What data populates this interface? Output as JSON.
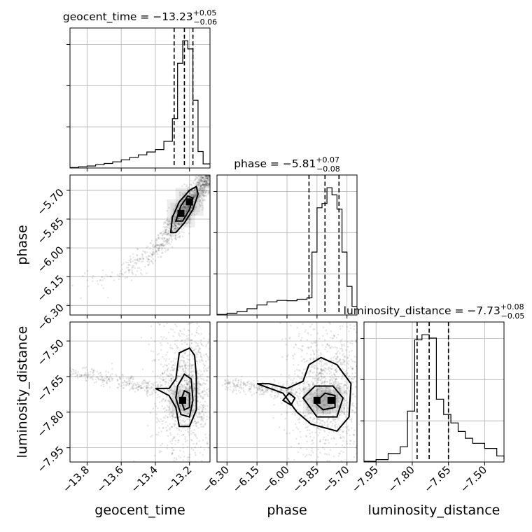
{
  "chart_data": {
    "type": "scatter",
    "parameters": [
      "geocent_time",
      "phase",
      "luminosity_distance"
    ],
    "grid": true,
    "diagonal": [
      {
        "param": "geocent_time",
        "title": {
          "prefix": "geocent_time = ",
          "median": "−13.23",
          "plus": "+0.05",
          "minus": "−0.06"
        },
        "median": -13.23,
        "q_low": -13.29,
        "q_high": -13.18,
        "xlim": [
          -13.9,
          -13.08
        ],
        "bin_edges": [
          -13.9,
          -13.85,
          -13.8,
          -13.75,
          -13.7,
          -13.65,
          -13.6,
          -13.55,
          -13.5,
          -13.45,
          -13.4,
          -13.35,
          -13.3,
          -13.27,
          -13.24,
          -13.21,
          -13.18,
          -13.15,
          -13.12,
          -13.08
        ],
        "counts": [
          0.1,
          0.3,
          0.5,
          0.8,
          1.1,
          1.5,
          2,
          2.6,
          3.2,
          3.9,
          4.5,
          6.5,
          12,
          25.5,
          31,
          29,
          16.5,
          4,
          1
        ]
      },
      {
        "param": "phase",
        "title": {
          "prefix": "phase = ",
          "median": "−5.81",
          "plus": "+0.07",
          "minus": "−0.08"
        },
        "median": -5.81,
        "q_low": -5.89,
        "q_high": -5.74,
        "xlim": [
          -6.35,
          -5.65
        ],
        "bin_edges": [
          -6.35,
          -6.3,
          -6.25,
          -6.2,
          -6.15,
          -6.1,
          -6.05,
          -6.0,
          -5.95,
          -5.9,
          -5.875,
          -5.85,
          -5.825,
          -5.8,
          -5.775,
          -5.75,
          -5.725,
          -5.7,
          -5.675,
          -5.65
        ],
        "counts": [
          0.2,
          0.6,
          1.2,
          2.2,
          3.5,
          4.6,
          5.1,
          5,
          5.5,
          6,
          22,
          37.5,
          39,
          44.5,
          42,
          37,
          22,
          10,
          3
        ]
      },
      {
        "param": "luminosity_distance",
        "title": {
          "prefix": "luminosity_distance = ",
          "median": "−7.73",
          "plus": "+0.08",
          "minus": "−0.05"
        },
        "median": -7.73,
        "q_low": -7.78,
        "q_high": -7.65,
        "xlim": [
          -8.0,
          -7.42
        ],
        "bin_edges": [
          -8.0,
          -7.95,
          -7.9,
          -7.85,
          -7.82,
          -7.79,
          -7.76,
          -7.73,
          -7.7,
          -7.67,
          -7.64,
          -7.61,
          -7.58,
          -7.55,
          -7.5,
          -7.45,
          -7.42
        ],
        "counts": [
          0.2,
          0.7,
          2.5,
          4.5,
          15,
          36,
          37.5,
          36.5,
          18.5,
          14,
          11.5,
          9,
          7,
          5.5,
          4,
          1.8,
          0.8
        ]
      }
    ],
    "pairs": [
      {
        "x": "geocent_time",
        "y": "phase",
        "xlim": [
          -13.9,
          -13.08
        ],
        "ylim": [
          -6.35,
          -5.62
        ],
        "scatter": {
          "shape": "curve",
          "points": [
            [
              -13.88,
              -6.21
            ],
            [
              -13.6,
              -6.13
            ],
            [
              -13.45,
              -6.05
            ],
            [
              -13.35,
              -5.96
            ],
            [
              -13.29,
              -5.89
            ],
            [
              -13.23,
              -5.81
            ],
            [
              -13.17,
              -5.73
            ],
            [
              -13.12,
              -5.66
            ],
            [
              -13.08,
              -5.63
            ]
          ],
          "spread": [
            0.05,
            0.03
          ],
          "n": 1400
        },
        "contours": [
          [
            [
              -13.31,
              -5.92
            ],
            [
              -13.3,
              -5.84
            ],
            [
              -13.26,
              -5.76
            ],
            [
              -13.2,
              -5.7
            ],
            [
              -13.16,
              -5.68
            ],
            [
              -13.15,
              -5.72
            ],
            [
              -13.18,
              -5.8
            ],
            [
              -13.23,
              -5.87
            ],
            [
              -13.28,
              -5.92
            ]
          ],
          [
            [
              -13.28,
              -5.86
            ],
            [
              -13.25,
              -5.78
            ],
            [
              -13.21,
              -5.73
            ],
            [
              -13.18,
              -5.74
            ],
            [
              -13.2,
              -5.8
            ],
            [
              -13.24,
              -5.86
            ]
          ]
        ],
        "hotspots": [
          [
            -13.25,
            -5.82
          ],
          [
            -13.2,
            -5.76
          ]
        ]
      },
      {
        "x": "geocent_time",
        "y": "luminosity_distance",
        "xlim": [
          -13.9,
          -13.08
        ],
        "ylim": [
          -8.01,
          -7.42
        ],
        "scatter": {
          "shape": "blob",
          "center": [
            -13.22,
            -7.7
          ],
          "radii": [
            0.09,
            0.18
          ],
          "tail": [
            [
              -13.9,
              -7.63
            ],
            [
              -13.4,
              -7.7
            ]
          ],
          "n": 1500
        },
        "contours": [
          [
            [
              -13.4,
              -7.7
            ],
            [
              -13.32,
              -7.73
            ],
            [
              -13.28,
              -7.78
            ],
            [
              -13.26,
              -7.86
            ],
            [
              -13.2,
              -7.86
            ],
            [
              -13.16,
              -7.79
            ],
            [
              -13.16,
              -7.65
            ],
            [
              -13.17,
              -7.56
            ],
            [
              -13.2,
              -7.53
            ],
            [
              -13.26,
              -7.55
            ],
            [
              -13.28,
              -7.66
            ],
            [
              -13.32,
              -7.7
            ]
          ],
          [
            [
              -13.28,
              -7.74
            ],
            [
              -13.25,
              -7.81
            ],
            [
              -13.2,
              -7.82
            ],
            [
              -13.18,
              -7.75
            ],
            [
              -13.19,
              -7.66
            ],
            [
              -13.23,
              -7.64
            ],
            [
              -13.27,
              -7.69
            ]
          ],
          [
            [
              -13.25,
              -7.75
            ],
            [
              -13.23,
              -7.79
            ],
            [
              -13.2,
              -7.78
            ],
            [
              -13.2,
              -7.72
            ],
            [
              -13.23,
              -7.71
            ]
          ]
        ],
        "hotspots": [
          [
            -13.24,
            -7.75
          ]
        ]
      },
      {
        "x": "phase",
        "y": "luminosity_distance",
        "xlim": [
          -6.35,
          -5.65
        ],
        "ylim": [
          -8.01,
          -7.42
        ],
        "scatter": {
          "shape": "blob",
          "center": [
            -5.8,
            -7.7
          ],
          "radii": [
            0.1,
            0.18
          ],
          "tail": [
            [
              -6.3,
              -7.68
            ],
            [
              -5.95,
              -7.72
            ]
          ],
          "n": 1500
        },
        "contours": [
          [
            [
              -6.15,
              -7.68
            ],
            [
              -6.02,
              -7.72
            ],
            [
              -5.95,
              -7.8
            ],
            [
              -5.88,
              -7.85
            ],
            [
              -5.75,
              -7.88
            ],
            [
              -5.69,
              -7.82
            ],
            [
              -5.68,
              -7.68
            ],
            [
              -5.75,
              -7.6
            ],
            [
              -5.83,
              -7.57
            ],
            [
              -5.89,
              -7.6
            ],
            [
              -5.92,
              -7.67
            ],
            [
              -6.0,
              -7.7
            ],
            [
              -6.09,
              -7.68
            ]
          ],
          [
            [
              -5.92,
              -7.74
            ],
            [
              -5.85,
              -7.82
            ],
            [
              -5.75,
              -7.82
            ],
            [
              -5.72,
              -7.74
            ],
            [
              -5.77,
              -7.69
            ],
            [
              -5.86,
              -7.69
            ]
          ],
          [
            [
              -5.86,
              -7.76
            ],
            [
              -5.82,
              -7.79
            ],
            [
              -5.76,
              -7.78
            ],
            [
              -5.76,
              -7.73
            ],
            [
              -5.81,
              -7.72
            ]
          ],
          [
            [
              -6.02,
              -7.75
            ],
            [
              -5.98,
              -7.77
            ],
            [
              -5.96,
              -7.74
            ],
            [
              -5.99,
              -7.72
            ]
          ]
        ],
        "hotspots": [
          [
            -5.85,
            -7.75
          ],
          [
            -5.78,
            -7.75
          ]
        ]
      }
    ],
    "ticks": {
      "geocent_time": {
        "values": [
          -13.8,
          -13.6,
          -13.4,
          -13.2
        ],
        "labels": [
          "−13.8",
          "−13.6",
          "−13.4",
          "−13.2"
        ]
      },
      "phase": {
        "values": [
          -6.3,
          -6.15,
          -6.0,
          -5.85,
          -5.7
        ],
        "labels": [
          "−6.30",
          "−6.15",
          "−6.00",
          "−5.85",
          "−5.70"
        ]
      },
      "luminosity_distance": {
        "values": [
          -7.95,
          -7.8,
          -7.65,
          -7.5
        ],
        "labels": [
          "−7.95",
          "−7.80",
          "−7.65",
          "−7.50"
        ]
      }
    },
    "axis_labels": {
      "geocent_time": "geocent_time",
      "phase": "phase",
      "luminosity_distance": "luminosity_distance"
    }
  }
}
